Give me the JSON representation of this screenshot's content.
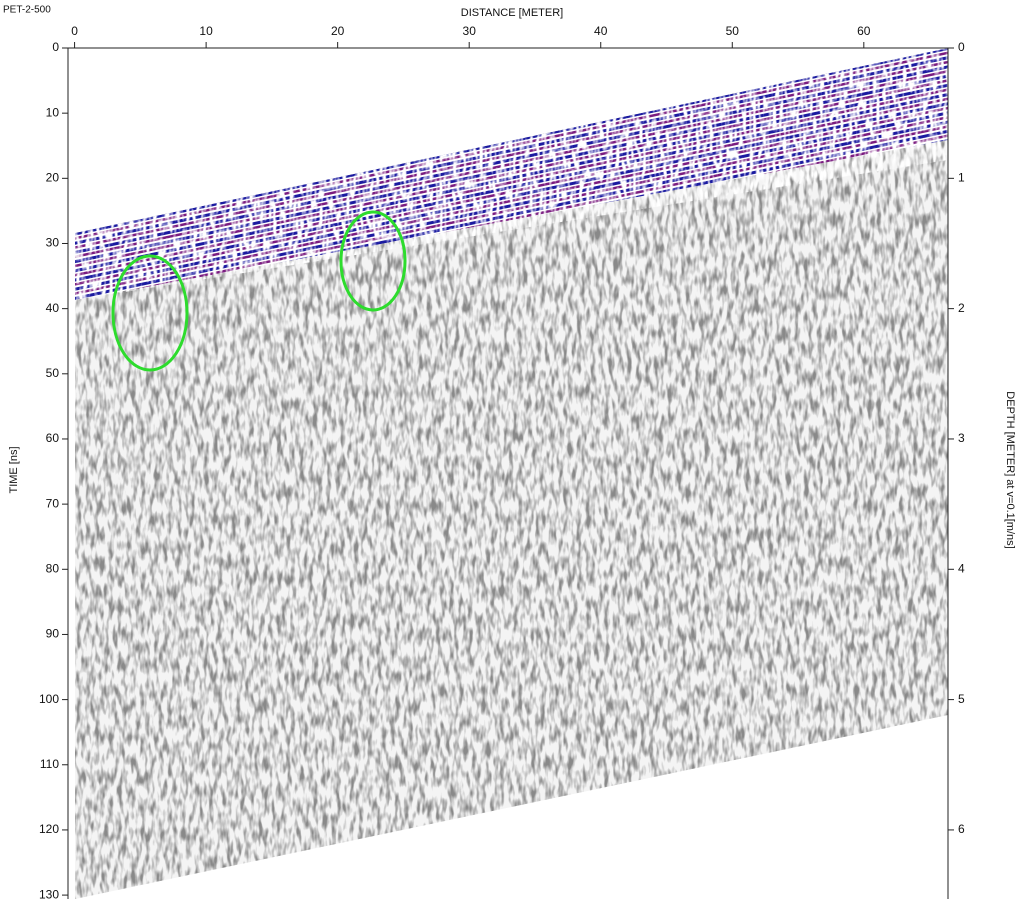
{
  "chart_data": {
    "type": "radargram",
    "title": "PET-2-500",
    "x_label": "DISTANCE [METER]",
    "y_label": "TIME [ns]",
    "y2_label": "DEPTH [METER] at v=0.1[m/ns]",
    "xlim": [
      -0.5,
      66.4
    ],
    "xticks": [
      0,
      10,
      20,
      30,
      40,
      50,
      60
    ],
    "ylim": [
      0,
      130.6
    ],
    "yticks": [
      0,
      10,
      20,
      30,
      40,
      50,
      60,
      70,
      80,
      90,
      100,
      110,
      120,
      130
    ],
    "y2lim": [
      0,
      6.53
    ],
    "y2ticks": [
      0,
      1,
      2,
      3,
      4,
      5,
      6
    ]
  }
}
